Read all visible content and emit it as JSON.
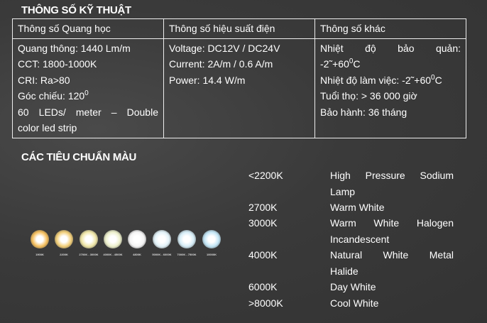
{
  "spec_title": "THÔNG SỐ KỸ THUẬT",
  "table": {
    "headers": [
      "Thông số Quang học",
      "Thông số hiệu suất điện",
      "Thông số khác"
    ],
    "col1": [
      "Quang thông: 1440 Lm/m",
      "CCT: 1800-1000K",
      "CRI: Ra>80",
      "Góc chiếu: 120",
      "60 LEDs/ meter – Double",
      "color led strip"
    ],
    "col1_sup": "0",
    "col2": [
      "Voltage: DC12V / DC24V",
      "Current: 2A/m / 0.6 A/m",
      "Power: 14.4 W/m"
    ],
    "col3": {
      "storage_a": "Nhiệt độ bảo quản:",
      "storage_b": "-2˜+60",
      "working": "Nhiệt độ làm việc: -2˜+60",
      "sup": "0",
      "unit": "C",
      "life": "Tuổi thọ: > 36 000 giờ",
      "warranty": "Bảo hành: 36 tháng"
    }
  },
  "color_title": "CÁC TIÊU CHUẨN MÀU",
  "swatches": [
    {
      "label": "1900K",
      "color": "#f5c060"
    },
    {
      "label": "2200K",
      "color": "#f2cf7a"
    },
    {
      "label": "2700K - 3000K",
      "color": "#efe6a8"
    },
    {
      "label": "4000K - 4500K",
      "color": "#edf0cc"
    },
    {
      "label": "4800K",
      "color": "#f4f4f4"
    },
    {
      "label": "5000K - 6000K",
      "color": "#e2f2f8"
    },
    {
      "label": "7000K - 7500K",
      "color": "#d5ecf6"
    },
    {
      "label": "10000K",
      "color": "#c3e6f6"
    }
  ],
  "standards": [
    {
      "k": "<2200K",
      "v1": "High Pressure Sodium",
      "v2": "Lamp"
    },
    {
      "k": "2700K",
      "v1": "Warm White",
      "v2": ""
    },
    {
      "k": "3000K",
      "v1": "Warm White Halogen",
      "v2": "Incandescent"
    },
    {
      "k": "4000K",
      "v1": "Natural White Metal",
      "v2": "Halide"
    },
    {
      "k": "6000K",
      "v1": "Day White",
      "v2": ""
    },
    {
      "k": ">8000K",
      "v1": "Cool White",
      "v2": ""
    }
  ]
}
